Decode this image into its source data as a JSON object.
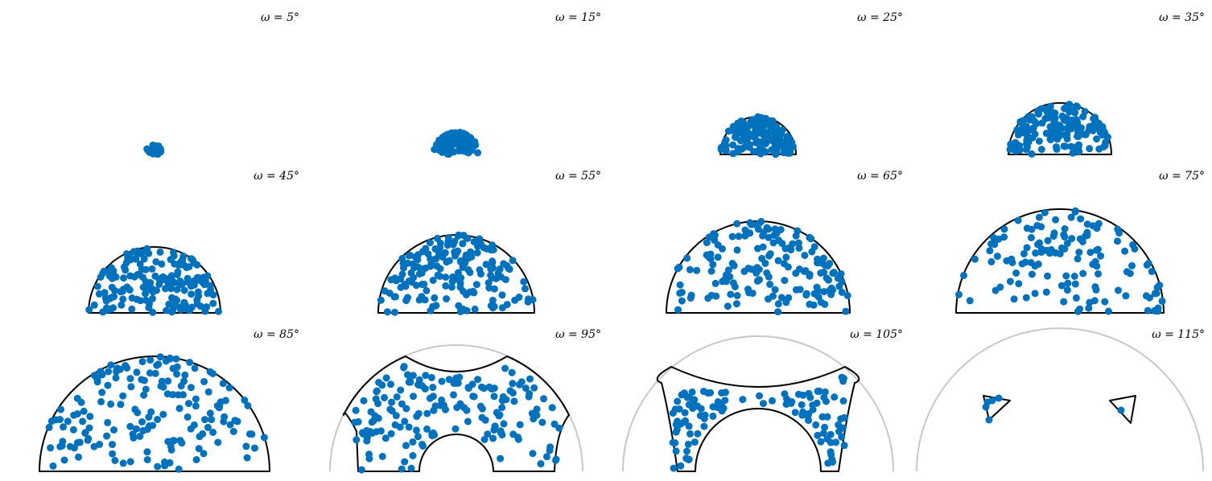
{
  "chart_data": {
    "type": "scatter",
    "marker_color": "#0072bd",
    "boundary_color": "#000000",
    "guide_color": "#c8c8c8",
    "panels": [
      {
        "title": "ω = 5°",
        "omega": 5,
        "n_points": 30,
        "axes": "off",
        "legend": "none"
      },
      {
        "title": "ω = 15°",
        "omega": 15,
        "n_points": 120,
        "axes": "off",
        "legend": "none"
      },
      {
        "title": "ω = 25°",
        "omega": 25,
        "n_points": 150,
        "axes": "off",
        "legend": "none"
      },
      {
        "title": "ω = 35°",
        "omega": 35,
        "n_points": 150,
        "axes": "off",
        "legend": "none"
      },
      {
        "title": "ω = 45°",
        "omega": 45,
        "n_points": 170,
        "axes": "off",
        "legend": "none"
      },
      {
        "title": "ω = 55°",
        "omega": 55,
        "n_points": 170,
        "axes": "off",
        "legend": "none"
      },
      {
        "title": "ω = 65°",
        "omega": 65,
        "n_points": 160,
        "axes": "off",
        "legend": "none"
      },
      {
        "title": "ω = 75°",
        "omega": 75,
        "n_points": 130,
        "axes": "off",
        "legend": "none"
      },
      {
        "title": "ω = 85°",
        "omega": 85,
        "n_points": 170,
        "axes": "off",
        "legend": "none"
      },
      {
        "title": "ω = 95°",
        "omega": 95,
        "n_points": 170,
        "axes": "off",
        "legend": "none"
      },
      {
        "title": "ω = 105°",
        "omega": 105,
        "n_points": 110,
        "axes": "off",
        "legend": "none"
      },
      {
        "title": "ω = 115°",
        "omega": 115,
        "n_points": 6,
        "axes": "off",
        "legend": "none"
      }
    ]
  }
}
